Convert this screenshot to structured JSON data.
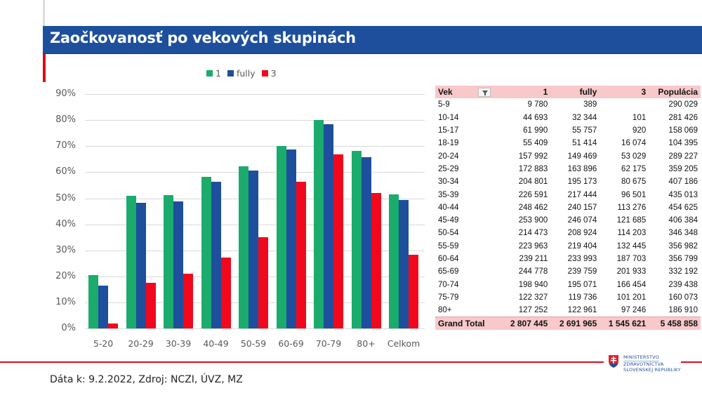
{
  "header": {
    "title": "Zaočkovanosť po vekových skupinách"
  },
  "colors": {
    "header_bg": "#1d4f9c",
    "accent_red": "#d90d1e",
    "series_1": "#1aab6d",
    "series_fully": "#1d4f9c",
    "series_3": "#f2081c",
    "table_header_bg": "#f8c8ca"
  },
  "legend": [
    {
      "label": "1",
      "color": "#1aab6d"
    },
    {
      "label": "fully",
      "color": "#1d4f9c"
    },
    {
      "label": "3",
      "color": "#f2081c"
    }
  ],
  "chart_data": {
    "type": "bar",
    "title": "Zaočkovanosť po vekových skupinách",
    "xlabel": "",
    "ylabel": "",
    "ylim": [
      0,
      90
    ],
    "y_ticks": [
      "0%",
      "10%",
      "20%",
      "30%",
      "40%",
      "50%",
      "60%",
      "70%",
      "80%",
      "90%"
    ],
    "grid": true,
    "legend_position": "top",
    "categories": [
      "5-20",
      "20-29",
      "30-39",
      "40-49",
      "50-59",
      "60-69",
      "70-79",
      "80+",
      "Celkom"
    ],
    "series": [
      {
        "name": "1",
        "color": "#1aab6d",
        "values": [
          20.5,
          51.0,
          51.2,
          58.2,
          62.2,
          70.1,
          80.1,
          68.1,
          51.4
        ]
      },
      {
        "name": "fully",
        "color": "#1d4f9c",
        "values": [
          16.5,
          48.2,
          48.8,
          56.3,
          60.7,
          68.6,
          78.5,
          65.8,
          49.3
        ]
      },
      {
        "name": "3",
        "color": "#f2081c",
        "values": [
          2.0,
          17.5,
          21.0,
          27.2,
          35.0,
          56.4,
          66.9,
          51.9,
          28.3
        ]
      }
    ]
  },
  "table": {
    "columns": [
      "Vek",
      "1",
      "fully",
      "3",
      "Populácia"
    ],
    "filter_icon": "filter-icon",
    "rows": [
      [
        "5-9",
        "9 780",
        "389",
        "",
        "290 029"
      ],
      [
        "10-14",
        "44 693",
        "32 344",
        "101",
        "281 426"
      ],
      [
        "15-17",
        "61 990",
        "55 757",
        "920",
        "158 069"
      ],
      [
        "18-19",
        "55 409",
        "51 414",
        "16 074",
        "104 395"
      ],
      [
        "20-24",
        "157 992",
        "149 469",
        "53 029",
        "289 227"
      ],
      [
        "25-29",
        "172 883",
        "163 896",
        "62 175",
        "359 205"
      ],
      [
        "30-34",
        "204 801",
        "195 173",
        "80 675",
        "407 186"
      ],
      [
        "35-39",
        "226 591",
        "217 444",
        "96 501",
        "435 013"
      ],
      [
        "40-44",
        "248 462",
        "240 157",
        "113 276",
        "454 625"
      ],
      [
        "45-49",
        "253 900",
        "246 074",
        "121 685",
        "406 384"
      ],
      [
        "50-54",
        "214 473",
        "208 924",
        "114 203",
        "346 348"
      ],
      [
        "55-59",
        "223 963",
        "219 404",
        "132 445",
        "356 982"
      ],
      [
        "60-64",
        "239 211",
        "233 993",
        "187 703",
        "356 799"
      ],
      [
        "65-69",
        "244 778",
        "239 759",
        "201 933",
        "332 192"
      ],
      [
        "70-74",
        "198 940",
        "195 071",
        "166 454",
        "239 438"
      ],
      [
        "75-79",
        "122 327",
        "119 736",
        "101 201",
        "160 073"
      ],
      [
        "80+",
        "127 252",
        "122 961",
        "97 246",
        "186 910"
      ]
    ],
    "total": [
      "Grand Total",
      "2 807 445",
      "2 691 965",
      "1 545 621",
      "5 458 858"
    ]
  },
  "footer": {
    "source": "Dáta k: 9.2.2022, Zdroj: NCZI, ÚVZ, MZ"
  },
  "logo": {
    "line1": "MINISTERSTVO",
    "line2": "ZDRAVOTNÍCTVA",
    "line3": "SLOVENSKEJ REPUBLIKY",
    "icon": "slovak-coat-of-arms-icon"
  }
}
